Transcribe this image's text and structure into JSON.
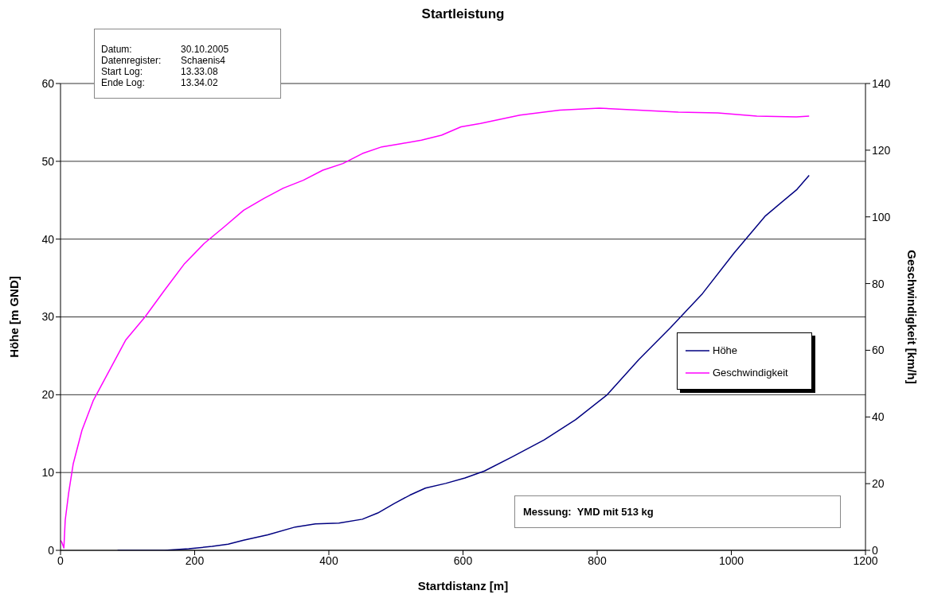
{
  "chart_data": {
    "type": "line",
    "title": "Startleistung",
    "xlabel": "Startdistanz [m]",
    "ylabel": "Höhe [m GND]",
    "y2label": "Geschwindigkeit [km/h]",
    "xlim": [
      0,
      1200
    ],
    "xticks": [
      0,
      200,
      400,
      600,
      800,
      1000,
      1200
    ],
    "ylim": [
      0,
      60
    ],
    "yticks": [
      0,
      10,
      20,
      30,
      40,
      50,
      60
    ],
    "y2lim": [
      0,
      140
    ],
    "y2ticks": [
      0,
      20,
      40,
      60,
      80,
      100,
      120,
      140
    ],
    "grid": "y",
    "legend": "right",
    "marker": "none",
    "line_style": "solid",
    "annotations": [
      "Datum: 30.10.2005",
      "Datenregister: Schaenis4",
      "Start Log: 13.33.08",
      "Ende Log: 13.34.02",
      "Messung:  YMD mit 513 kg"
    ],
    "series": [
      {
        "name": "Höhe",
        "color": "#000080",
        "x": [
          85,
          155,
          191,
          226,
          250,
          273,
          309,
          350,
          380,
          415,
          450,
          473,
          497,
          521,
          544,
          574,
          603,
          632,
          673,
          721,
          768,
          815,
          862,
          909,
          957,
          1004,
          1051,
          1098,
          1116
        ],
        "values": [
          0,
          0,
          0.2,
          0.5,
          0.8,
          1.3,
          2,
          3,
          3.4,
          3.5,
          4,
          4.8,
          6,
          7.1,
          8,
          8.6,
          9.3,
          10.2,
          12,
          14.2,
          16.8,
          20,
          24.5,
          28.6,
          33,
          38.2,
          43,
          46.4,
          48.2
        ]
      },
      {
        "name": "Geschwindigkeit",
        "color": "#ff00ff",
        "axis": "y2",
        "x": [
          0,
          2,
          5,
          7,
          12,
          19,
          32,
          49,
          73,
          97,
          126,
          155,
          185,
          214,
          244,
          273,
          303,
          332,
          362,
          391,
          421,
          450,
          479,
          509,
          538,
          568,
          597,
          626,
          685,
          744,
          803,
          862,
          921,
          980,
          1038,
          1097,
          1116
        ],
        "values": [
          3,
          2.4,
          0.7,
          9,
          17,
          26,
          36,
          45,
          54,
          63,
          70,
          78,
          86,
          92,
          97,
          102,
          105.5,
          108.6,
          111,
          114,
          116,
          119,
          121,
          122,
          123,
          124.5,
          127,
          128,
          130.5,
          132,
          132.6,
          132,
          131.4,
          131.2,
          130.2,
          130,
          130.2
        ]
      }
    ]
  }
}
